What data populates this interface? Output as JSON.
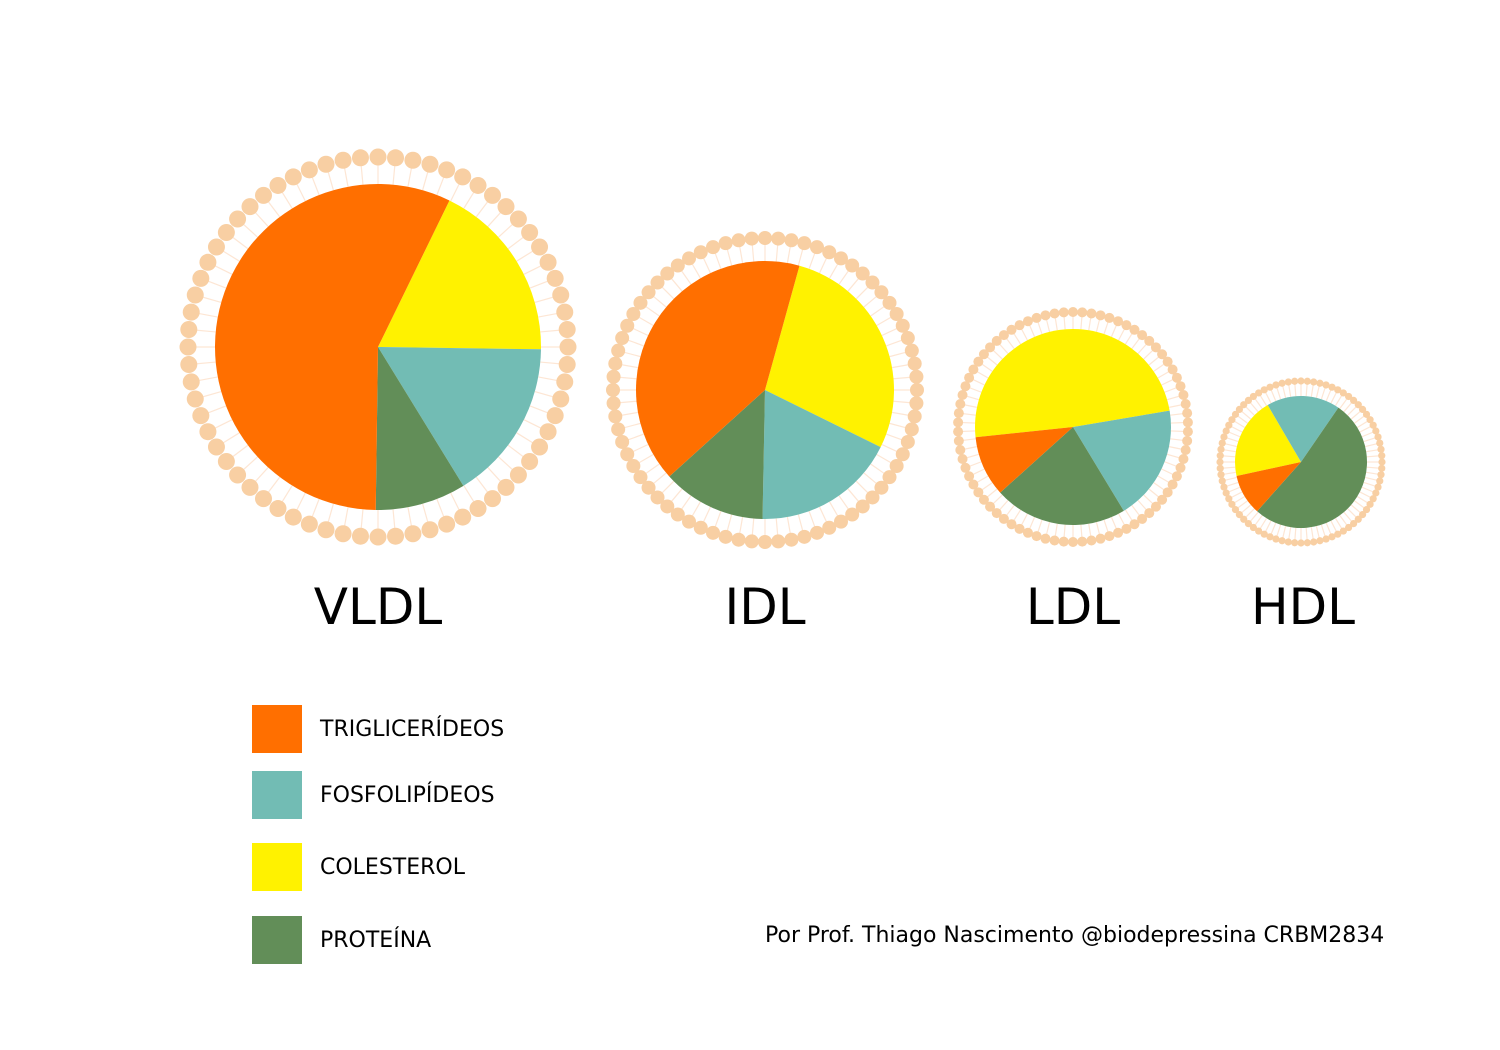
{
  "chart_data": {
    "type": "pie",
    "legend_position": "bottom-left",
    "colors": {
      "triglicerideos": "#ff6f00",
      "fosfolipideos": "#72bcb4",
      "colesterol": "#fff200",
      "proteina": "#628e58",
      "bead": "#f8cfa3"
    },
    "legend": [
      {
        "key": "triglicerideos",
        "label": "TRIGLICERÍDEOS"
      },
      {
        "key": "fosfolipideos",
        "label": "FOSFOLIPÍDEOS"
      },
      {
        "key": "colesterol",
        "label": "COLESTEROL"
      },
      {
        "key": "proteina",
        "label": "PROTEÍNA"
      }
    ],
    "pies": [
      {
        "label": "VLDL",
        "values": {
          "triglicerideos": 57,
          "colesterol": 18,
          "fosfolipideos": 16,
          "proteina": 9
        }
      },
      {
        "label": "IDL",
        "values": {
          "triglicerideos": 41,
          "colesterol": 28,
          "fosfolipideos": 18,
          "proteina": 13
        }
      },
      {
        "label": "LDL",
        "values": {
          "triglicerideos": 10,
          "colesterol": 49,
          "fosfolipideos": 19,
          "proteina": 22
        }
      },
      {
        "label": "HDL",
        "values": {
          "triglicerideos": 10,
          "colesterol": 20,
          "fosfolipideos": 18,
          "proteina": 52
        }
      }
    ]
  },
  "credit": "Por Prof. Thiago Nascimento @biodepressina CRBM2834"
}
